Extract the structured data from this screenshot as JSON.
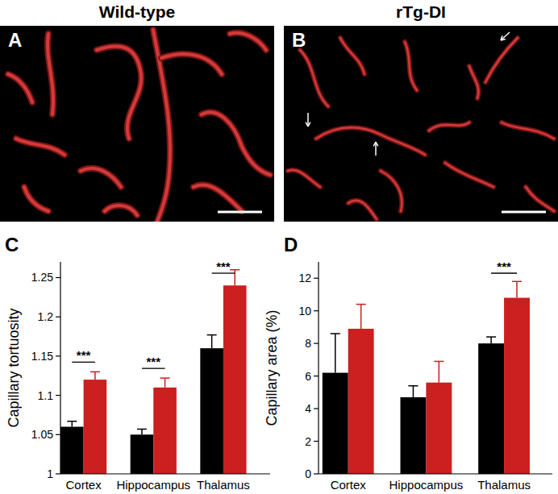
{
  "panels": [
    {
      "label": "A",
      "title": "Wild-type"
    },
    {
      "label": "B",
      "title": "rTg-DI"
    }
  ],
  "chart_data": [
    {
      "type": "bar",
      "annotations": [
        "C"
      ],
      "ylabel": "Capillary tortuosity",
      "categories": [
        "Cortex",
        "Hippocampus",
        "Thalamus"
      ],
      "series": [
        {
          "color": "#000000",
          "values": [
            1.06,
            1.05,
            1.16
          ],
          "errors": [
            0.007,
            0.007,
            0.017
          ]
        },
        {
          "color": "#cc1f1f",
          "values": [
            1.12,
            1.11,
            1.24
          ],
          "errors": [
            0.01,
            0.012,
            0.02
          ]
        }
      ],
      "ylim": [
        1,
        1.27
      ],
      "yticks": [
        1,
        1.05,
        1.1,
        1.15,
        1.2,
        1.25
      ],
      "significance": [
        {
          "category": "Cortex",
          "text": "***"
        },
        {
          "category": "Hippocampus",
          "text": "***"
        },
        {
          "category": "Thalamus",
          "text": "***"
        }
      ]
    },
    {
      "type": "bar",
      "annotations": [
        "D"
      ],
      "ylabel": "Capillary area (%)",
      "categories": [
        "Cortex",
        "Hippocampus",
        "Thalamus"
      ],
      "series": [
        {
          "color": "#000000",
          "values": [
            6.2,
            4.7,
            8.0
          ],
          "errors": [
            2.4,
            0.7,
            0.4
          ]
        },
        {
          "color": "#cc1f1f",
          "values": [
            8.9,
            5.6,
            10.8
          ],
          "errors": [
            1.5,
            1.3,
            1.0
          ]
        }
      ],
      "ylim": [
        0,
        13
      ],
      "yticks": [
        0,
        2,
        4,
        6,
        8,
        10,
        12
      ],
      "significance": [
        {
          "category": "Thalamus",
          "text": "***"
        }
      ]
    }
  ]
}
